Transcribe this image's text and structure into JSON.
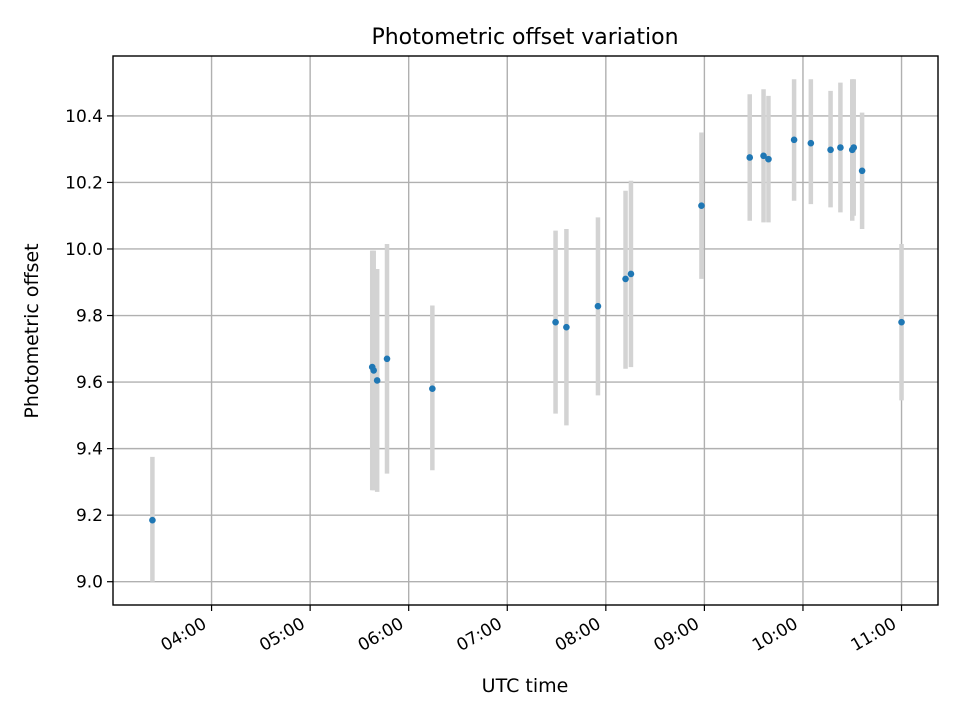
{
  "chart_data": {
    "type": "scatter",
    "title": "Photometric offset variation",
    "xlabel": "UTC time",
    "ylabel": "Photometric offset",
    "x_unit": "hours UTC",
    "xlim": [
      3.0,
      11.37
    ],
    "ylim": [
      8.93,
      10.58
    ],
    "grid": true,
    "x_ticks": [
      {
        "value": 4,
        "label": "04:00"
      },
      {
        "value": 5,
        "label": "05:00"
      },
      {
        "value": 6,
        "label": "06:00"
      },
      {
        "value": 7,
        "label": "07:00"
      },
      {
        "value": 8,
        "label": "08:00"
      },
      {
        "value": 9,
        "label": "09:00"
      },
      {
        "value": 10,
        "label": "10:00"
      },
      {
        "value": 11,
        "label": "11:00"
      }
    ],
    "y_ticks": [
      {
        "value": 9.0,
        "label": "9.0"
      },
      {
        "value": 9.2,
        "label": "9.2"
      },
      {
        "value": 9.4,
        "label": "9.4"
      },
      {
        "value": 9.6,
        "label": "9.6"
      },
      {
        "value": 9.8,
        "label": "9.8"
      },
      {
        "value": 10.0,
        "label": "10.0"
      },
      {
        "value": 10.2,
        "label": "10.2"
      },
      {
        "value": 10.4,
        "label": "10.4"
      }
    ],
    "colors": {
      "point": "#1f77b4",
      "errorbar": "#d3d3d3",
      "grid": "#b0b0b0"
    },
    "points": [
      {
        "x": 3.4,
        "y": 9.185,
        "low": 9.0,
        "high": 9.375
      },
      {
        "x": 5.63,
        "y": 9.645,
        "low": 9.275,
        "high": 9.995
      },
      {
        "x": 5.645,
        "y": 9.635,
        "low": 9.275,
        "high": 9.995
      },
      {
        "x": 5.68,
        "y": 9.605,
        "low": 9.27,
        "high": 9.94
      },
      {
        "x": 5.78,
        "y": 9.67,
        "low": 9.325,
        "high": 10.015
      },
      {
        "x": 6.24,
        "y": 9.58,
        "low": 9.335,
        "high": 9.83
      },
      {
        "x": 7.49,
        "y": 9.78,
        "low": 9.505,
        "high": 10.055
      },
      {
        "x": 7.6,
        "y": 9.765,
        "low": 9.47,
        "high": 10.06
      },
      {
        "x": 7.92,
        "y": 9.828,
        "low": 9.56,
        "high": 10.095
      },
      {
        "x": 8.2,
        "y": 9.91,
        "low": 9.64,
        "high": 10.175
      },
      {
        "x": 8.255,
        "y": 9.925,
        "low": 9.645,
        "high": 10.205
      },
      {
        "x": 8.97,
        "y": 10.13,
        "low": 9.91,
        "high": 10.35
      },
      {
        "x": 9.46,
        "y": 10.275,
        "low": 10.085,
        "high": 10.465
      },
      {
        "x": 9.6,
        "y": 10.28,
        "low": 10.08,
        "high": 10.48
      },
      {
        "x": 9.65,
        "y": 10.27,
        "low": 10.08,
        "high": 10.46
      },
      {
        "x": 9.91,
        "y": 10.328,
        "low": 10.145,
        "high": 10.51
      },
      {
        "x": 10.08,
        "y": 10.318,
        "low": 10.135,
        "high": 10.51
      },
      {
        "x": 10.28,
        "y": 10.298,
        "low": 10.125,
        "high": 10.475
      },
      {
        "x": 10.38,
        "y": 10.305,
        "low": 10.11,
        "high": 10.5
      },
      {
        "x": 10.5,
        "y": 10.298,
        "low": 10.085,
        "high": 10.51
      },
      {
        "x": 10.515,
        "y": 10.305,
        "low": 10.1,
        "high": 10.51
      },
      {
        "x": 10.6,
        "y": 10.235,
        "low": 10.06,
        "high": 10.41
      },
      {
        "x": 11.0,
        "y": 9.78,
        "low": 9.545,
        "high": 10.015
      }
    ]
  }
}
